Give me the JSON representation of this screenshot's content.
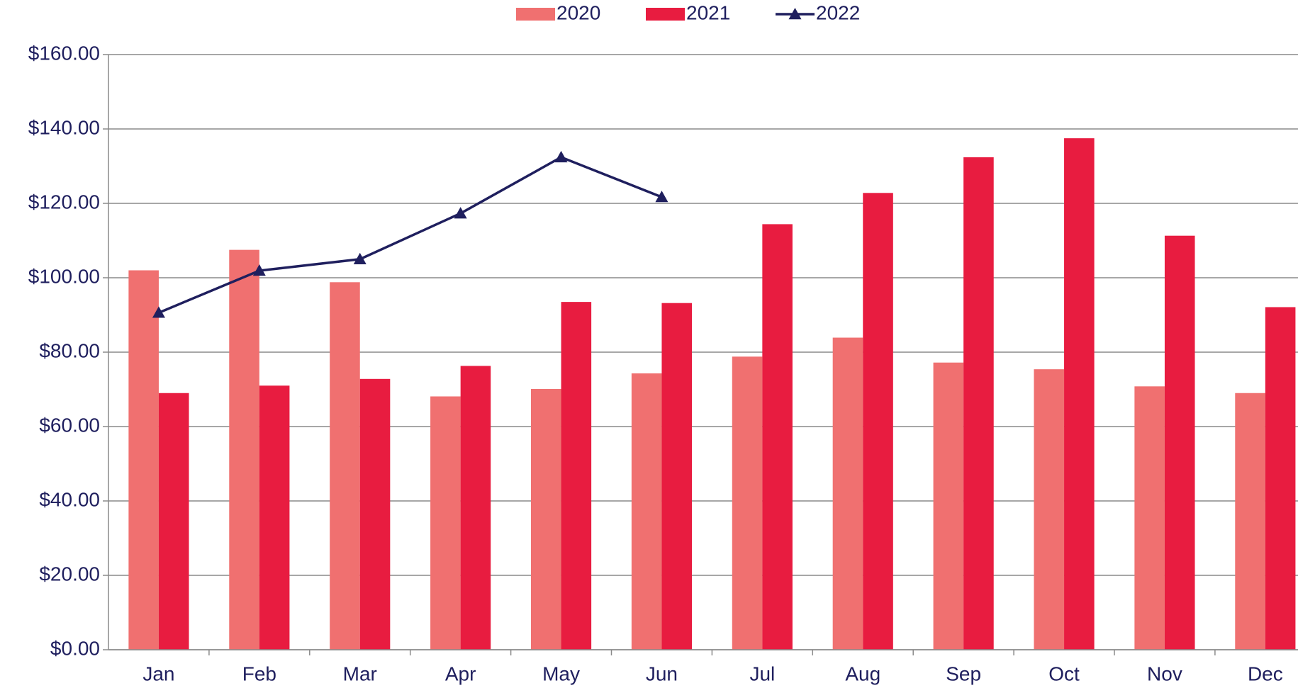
{
  "chart_data": {
    "type": "bar",
    "categories": [
      "Jan",
      "Feb",
      "Mar",
      "Apr",
      "May",
      "Jun",
      "Jul",
      "Aug",
      "Sep",
      "Oct",
      "Nov",
      "Dec"
    ],
    "series": [
      {
        "name": "2020",
        "type": "bar",
        "color": "#f07070",
        "values": [
          102,
          107.5,
          98.8,
          68.1,
          70.1,
          74.3,
          78.8,
          83.9,
          77.2,
          75.4,
          70.8,
          69.0
        ]
      },
      {
        "name": "2021",
        "type": "bar",
        "color": "#e81c40",
        "values": [
          69.0,
          71.0,
          72.8,
          76.3,
          93.5,
          93.2,
          114.4,
          122.8,
          132.4,
          137.5,
          111.3,
          92.1
        ]
      },
      {
        "name": "2022",
        "type": "line",
        "color": "#1f1f5e",
        "values": [
          90.6,
          101.9,
          105.0,
          117.3,
          132.4,
          121.7,
          null,
          null,
          null,
          null,
          null,
          null
        ]
      }
    ],
    "ylim": [
      0,
      160
    ],
    "yticks": [
      {
        "value": 0,
        "label": "$0.00"
      },
      {
        "value": 20,
        "label": "$20.00"
      },
      {
        "value": 40,
        "label": "$40.00"
      },
      {
        "value": 60,
        "label": "$60.00"
      },
      {
        "value": 80,
        "label": "$80.00"
      },
      {
        "value": 100,
        "label": "$100.00"
      },
      {
        "value": 120,
        "label": "$120.00"
      },
      {
        "value": 140,
        "label": "$140.00"
      },
      {
        "value": 160,
        "label": "$160.00"
      }
    ],
    "grid": true,
    "legend": "top"
  }
}
